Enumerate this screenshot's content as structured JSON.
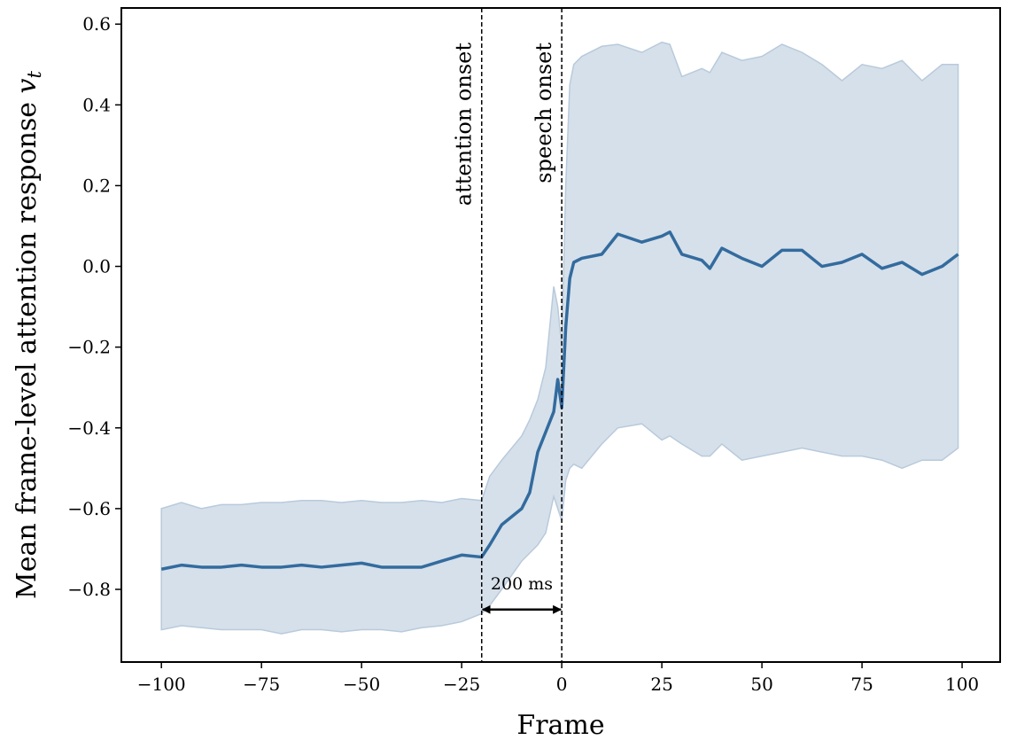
{
  "chart_data": {
    "type": "line",
    "xlabel": "Frame",
    "ylabel": {
      "text": "Mean frame-level attention response ",
      "var": "v",
      "sub": "t"
    },
    "x": [
      -100,
      -95,
      -90,
      -85,
      -80,
      -75,
      -70,
      -65,
      -60,
      -55,
      -50,
      -45,
      -40,
      -35,
      -30,
      -25,
      -20,
      -18,
      -15,
      -10,
      -8,
      -6,
      -4,
      -2,
      -1,
      0,
      1,
      2,
      3,
      5,
      10,
      14,
      20,
      25,
      27,
      30,
      35,
      37,
      40,
      45,
      50,
      55,
      60,
      65,
      70,
      75,
      80,
      85,
      90,
      95,
      99
    ],
    "series": [
      {
        "color": "#336b9e",
        "band_color": "#d6e0ea",
        "values": [
          -0.75,
          -0.74,
          -0.745,
          -0.745,
          -0.74,
          -0.745,
          -0.745,
          -0.74,
          -0.745,
          -0.74,
          -0.735,
          -0.745,
          -0.745,
          -0.745,
          -0.73,
          -0.715,
          -0.72,
          -0.69,
          -0.64,
          -0.6,
          -0.56,
          -0.46,
          -0.41,
          -0.36,
          -0.28,
          -0.35,
          -0.15,
          -0.03,
          0.01,
          0.02,
          0.03,
          0.08,
          0.06,
          0.075,
          0.085,
          0.03,
          0.015,
          -0.005,
          0.045,
          0.02,
          0.0,
          0.04,
          0.04,
          0.0,
          0.01,
          0.03,
          -0.005,
          0.01,
          -0.02,
          0.0,
          0.03
        ],
        "upper": [
          -0.6,
          -0.585,
          -0.6,
          -0.59,
          -0.59,
          -0.585,
          -0.585,
          -0.58,
          -0.58,
          -0.585,
          -0.58,
          -0.585,
          -0.585,
          -0.58,
          -0.585,
          -0.575,
          -0.58,
          -0.52,
          -0.48,
          -0.42,
          -0.38,
          -0.33,
          -0.25,
          -0.05,
          -0.1,
          -0.2,
          0.2,
          0.45,
          0.5,
          0.52,
          0.545,
          0.55,
          0.53,
          0.555,
          0.55,
          0.47,
          0.49,
          0.48,
          0.53,
          0.51,
          0.52,
          0.55,
          0.53,
          0.5,
          0.46,
          0.5,
          0.49,
          0.51,
          0.46,
          0.5,
          0.5
        ],
        "lower": [
          -0.9,
          -0.89,
          -0.895,
          -0.9,
          -0.9,
          -0.9,
          -0.91,
          -0.9,
          -0.9,
          -0.905,
          -0.9,
          -0.9,
          -0.905,
          -0.895,
          -0.89,
          -0.88,
          -0.86,
          -0.84,
          -0.8,
          -0.73,
          -0.71,
          -0.69,
          -0.66,
          -0.57,
          -0.6,
          -0.63,
          -0.53,
          -0.5,
          -0.49,
          -0.5,
          -0.44,
          -0.4,
          -0.39,
          -0.43,
          -0.42,
          -0.44,
          -0.47,
          -0.47,
          -0.44,
          -0.48,
          -0.47,
          -0.46,
          -0.45,
          -0.46,
          -0.47,
          -0.47,
          -0.48,
          -0.5,
          -0.48,
          -0.48,
          -0.45
        ]
      }
    ],
    "vlines": [
      {
        "x": -20,
        "label": "attention onset"
      },
      {
        "x": 0,
        "label": "speech onset"
      }
    ],
    "annotation": {
      "text": "200 ms",
      "x_start": -20,
      "x_end": 0,
      "y": -0.85
    },
    "xlim": [
      -110,
      109.5
    ],
    "ylim": [
      -0.98,
      0.64
    ],
    "xticks": [
      {
        "value": -100,
        "label": "−100"
      },
      {
        "value": -75,
        "label": "−75"
      },
      {
        "value": -50,
        "label": "−50"
      },
      {
        "value": -25,
        "label": "−25"
      },
      0,
      25,
      50,
      75,
      100
    ],
    "yticks": [
      {
        "value": -0.8,
        "label": "−0.8"
      },
      {
        "value": -0.6,
        "label": "−0.6"
      },
      {
        "value": -0.4,
        "label": "−0.4"
      },
      {
        "value": -0.2,
        "label": "−0.2"
      },
      {
        "value": 0,
        "label": "0.0"
      },
      0.2,
      0.4,
      0.6
    ],
    "grid": false
  }
}
